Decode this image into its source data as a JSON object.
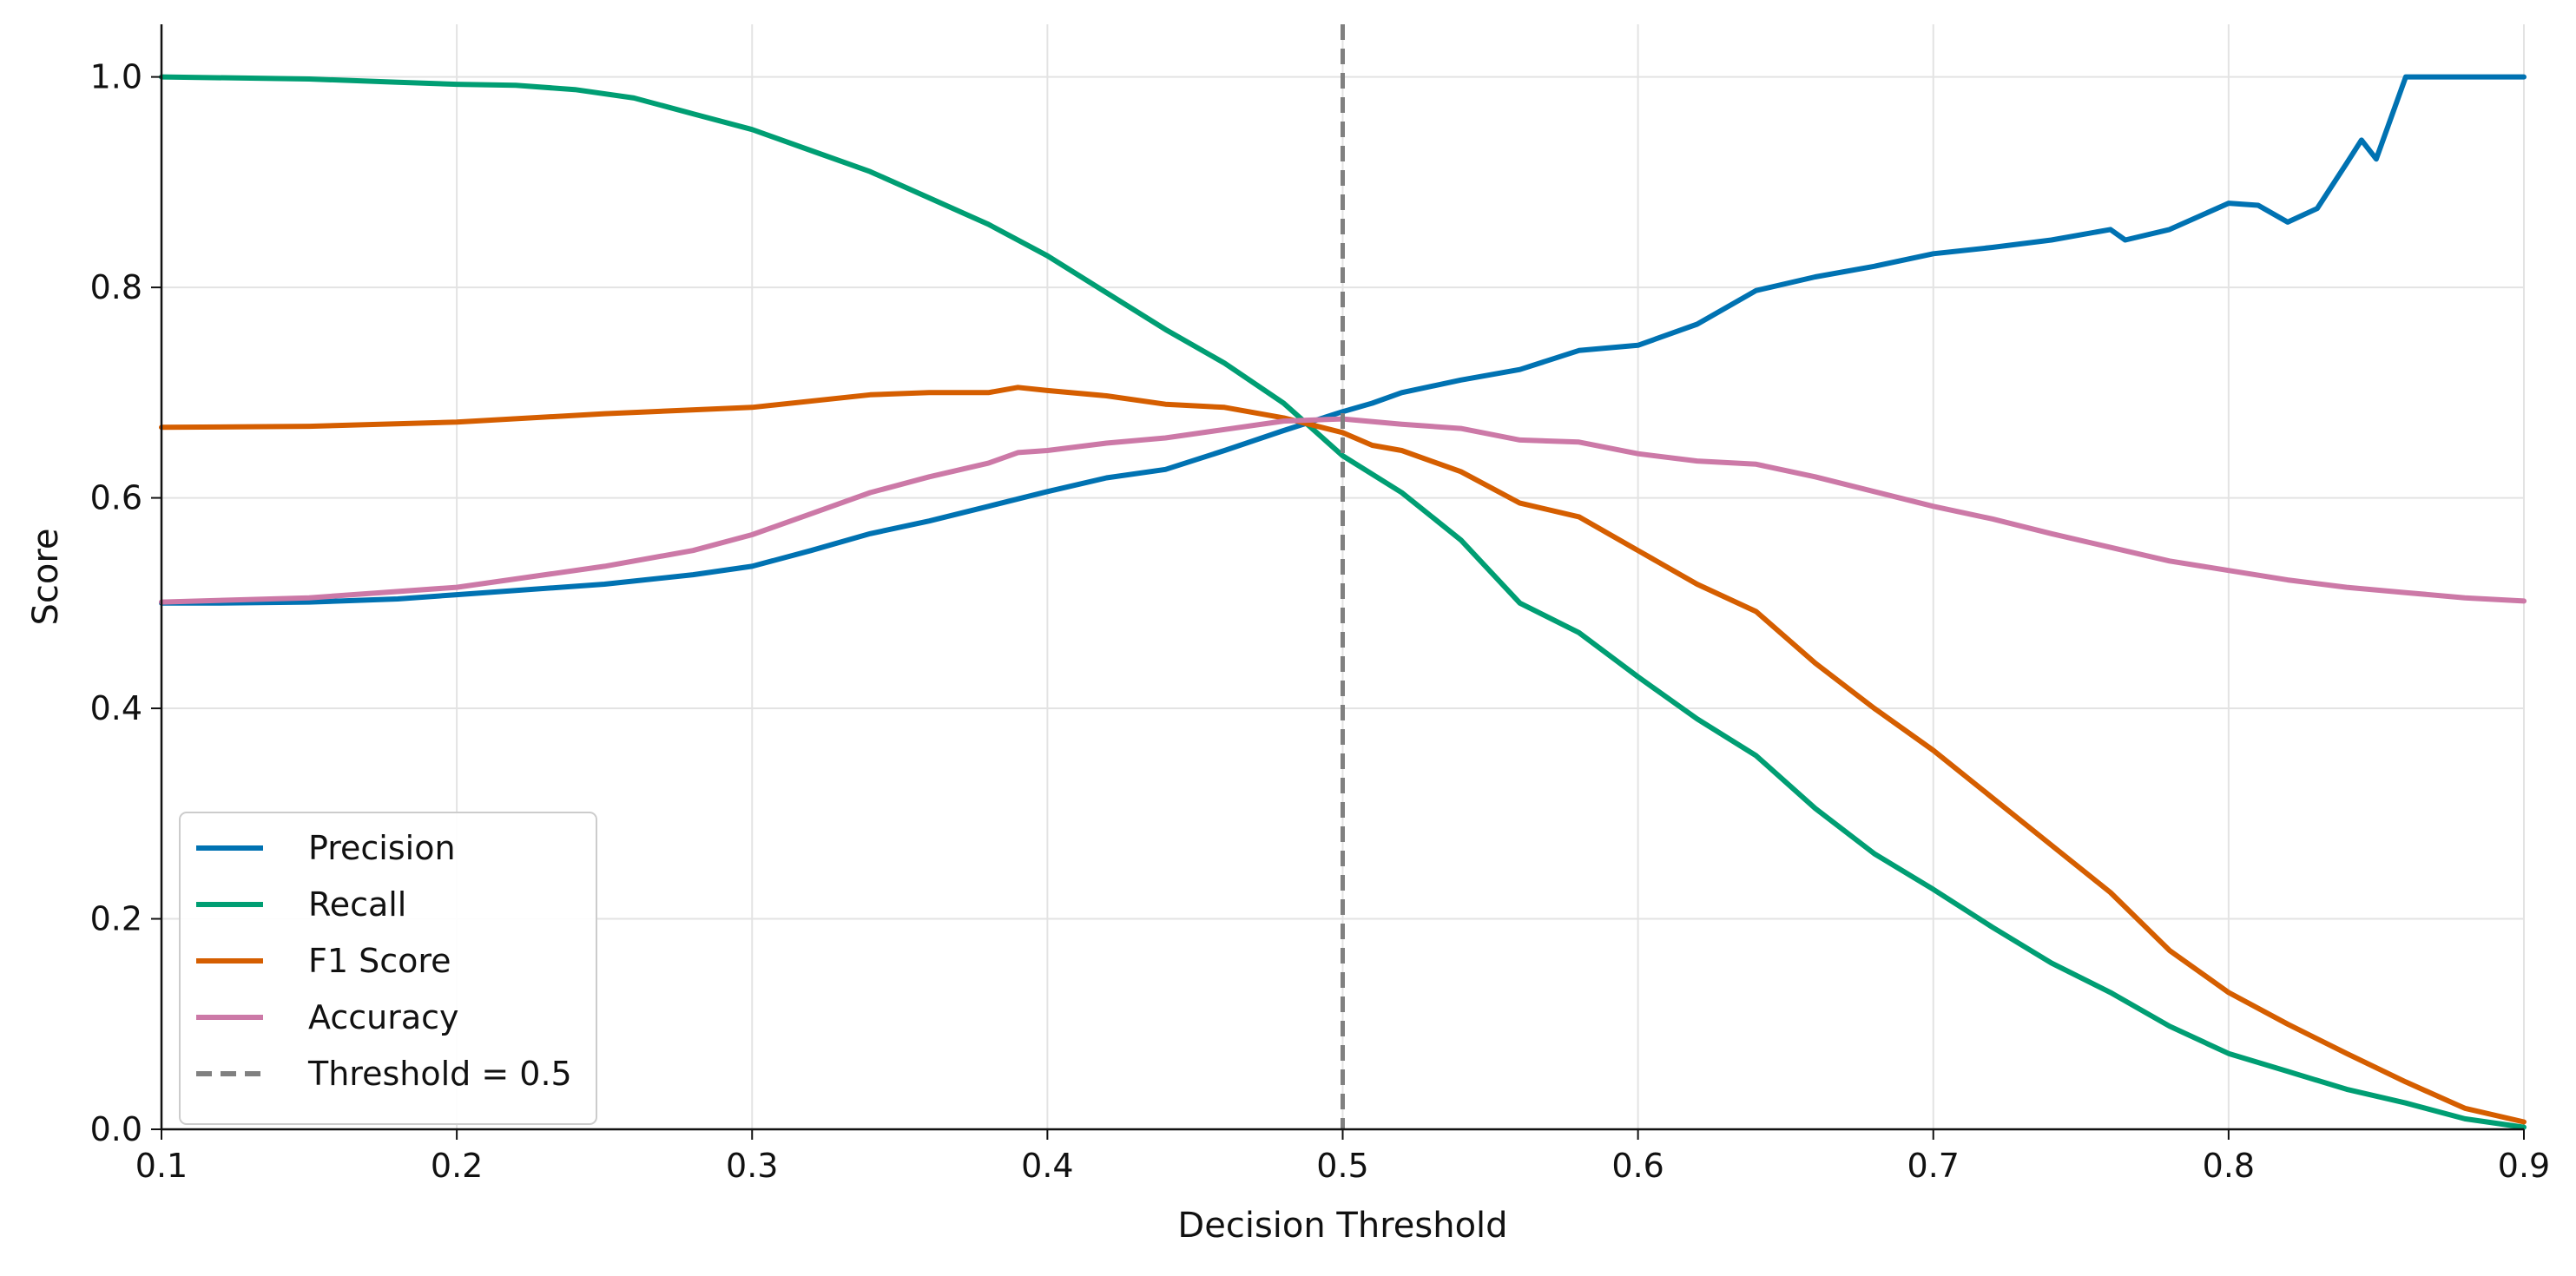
{
  "chart_data": {
    "type": "line",
    "title": "",
    "xlabel": "Decision Threshold",
    "ylabel": "Score",
    "xlim": [
      0.1,
      0.9
    ],
    "ylim": [
      0.0,
      1.05
    ],
    "xticks": [
      "0.1",
      "0.2",
      "0.3",
      "0.4",
      "0.5",
      "0.6",
      "0.7",
      "0.8",
      "0.9"
    ],
    "yticks": [
      "0.0",
      "0.2",
      "0.4",
      "0.6",
      "0.8",
      "1.0"
    ],
    "grid": true,
    "legend_position": "lower-left",
    "series": [
      {
        "name": "Precision",
        "color": "#0072B2",
        "points": [
          [
            0.1,
            0.5
          ],
          [
            0.12,
            0.5
          ],
          [
            0.15,
            0.501
          ],
          [
            0.18,
            0.504
          ],
          [
            0.2,
            0.508
          ],
          [
            0.22,
            0.512
          ],
          [
            0.25,
            0.518
          ],
          [
            0.28,
            0.527
          ],
          [
            0.3,
            0.535
          ],
          [
            0.32,
            0.55
          ],
          [
            0.34,
            0.566
          ],
          [
            0.36,
            0.578
          ],
          [
            0.38,
            0.592
          ],
          [
            0.4,
            0.606
          ],
          [
            0.42,
            0.619
          ],
          [
            0.44,
            0.627
          ],
          [
            0.46,
            0.645
          ],
          [
            0.48,
            0.664
          ],
          [
            0.5,
            0.682
          ],
          [
            0.51,
            0.69
          ],
          [
            0.52,
            0.7
          ],
          [
            0.54,
            0.712
          ],
          [
            0.56,
            0.722
          ],
          [
            0.58,
            0.74
          ],
          [
            0.6,
            0.745
          ],
          [
            0.62,
            0.765
          ],
          [
            0.64,
            0.797
          ],
          [
            0.66,
            0.81
          ],
          [
            0.68,
            0.82
          ],
          [
            0.7,
            0.832
          ],
          [
            0.72,
            0.838
          ],
          [
            0.74,
            0.845
          ],
          [
            0.76,
            0.855
          ],
          [
            0.765,
            0.845
          ],
          [
            0.78,
            0.855
          ],
          [
            0.8,
            0.88
          ],
          [
            0.81,
            0.878
          ],
          [
            0.82,
            0.862
          ],
          [
            0.83,
            0.875
          ],
          [
            0.84,
            0.918
          ],
          [
            0.845,
            0.94
          ],
          [
            0.85,
            0.922
          ],
          [
            0.86,
            1.0
          ],
          [
            0.9,
            1.0
          ]
        ]
      },
      {
        "name": "Recall",
        "color": "#009E73",
        "points": [
          [
            0.1,
            1.0
          ],
          [
            0.15,
            0.998
          ],
          [
            0.18,
            0.995
          ],
          [
            0.2,
            0.993
          ],
          [
            0.22,
            0.992
          ],
          [
            0.24,
            0.988
          ],
          [
            0.26,
            0.98
          ],
          [
            0.28,
            0.965
          ],
          [
            0.3,
            0.95
          ],
          [
            0.32,
            0.93
          ],
          [
            0.34,
            0.91
          ],
          [
            0.36,
            0.885
          ],
          [
            0.38,
            0.86
          ],
          [
            0.4,
            0.83
          ],
          [
            0.42,
            0.795
          ],
          [
            0.44,
            0.76
          ],
          [
            0.46,
            0.728
          ],
          [
            0.48,
            0.69
          ],
          [
            0.5,
            0.64
          ],
          [
            0.52,
            0.605
          ],
          [
            0.54,
            0.56
          ],
          [
            0.56,
            0.5
          ],
          [
            0.58,
            0.472
          ],
          [
            0.6,
            0.43
          ],
          [
            0.62,
            0.39
          ],
          [
            0.64,
            0.355
          ],
          [
            0.66,
            0.305
          ],
          [
            0.68,
            0.262
          ],
          [
            0.7,
            0.228
          ],
          [
            0.72,
            0.192
          ],
          [
            0.74,
            0.158
          ],
          [
            0.76,
            0.13
          ],
          [
            0.78,
            0.098
          ],
          [
            0.8,
            0.072
          ],
          [
            0.82,
            0.055
          ],
          [
            0.84,
            0.038
          ],
          [
            0.86,
            0.025
          ],
          [
            0.88,
            0.01
          ],
          [
            0.9,
            0.002
          ]
        ]
      },
      {
        "name": "F1 Score",
        "color": "#D55E00",
        "points": [
          [
            0.1,
            0.667
          ],
          [
            0.15,
            0.668
          ],
          [
            0.2,
            0.672
          ],
          [
            0.25,
            0.68
          ],
          [
            0.3,
            0.686
          ],
          [
            0.34,
            0.698
          ],
          [
            0.36,
            0.7
          ],
          [
            0.38,
            0.7
          ],
          [
            0.39,
            0.705
          ],
          [
            0.4,
            0.702
          ],
          [
            0.42,
            0.697
          ],
          [
            0.44,
            0.689
          ],
          [
            0.46,
            0.686
          ],
          [
            0.48,
            0.676
          ],
          [
            0.5,
            0.662
          ],
          [
            0.51,
            0.65
          ],
          [
            0.52,
            0.645
          ],
          [
            0.54,
            0.625
          ],
          [
            0.56,
            0.595
          ],
          [
            0.58,
            0.582
          ],
          [
            0.6,
            0.55
          ],
          [
            0.62,
            0.518
          ],
          [
            0.64,
            0.492
          ],
          [
            0.66,
            0.443
          ],
          [
            0.68,
            0.4
          ],
          [
            0.7,
            0.36
          ],
          [
            0.72,
            0.315
          ],
          [
            0.74,
            0.27
          ],
          [
            0.76,
            0.225
          ],
          [
            0.78,
            0.17
          ],
          [
            0.8,
            0.13
          ],
          [
            0.82,
            0.1
          ],
          [
            0.84,
            0.072
          ],
          [
            0.86,
            0.045
          ],
          [
            0.88,
            0.02
          ],
          [
            0.9,
            0.007
          ]
        ]
      },
      {
        "name": "Accuracy",
        "color": "#CC79A7",
        "points": [
          [
            0.1,
            0.501
          ],
          [
            0.15,
            0.505
          ],
          [
            0.2,
            0.515
          ],
          [
            0.25,
            0.535
          ],
          [
            0.28,
            0.55
          ],
          [
            0.3,
            0.565
          ],
          [
            0.32,
            0.585
          ],
          [
            0.34,
            0.605
          ],
          [
            0.36,
            0.62
          ],
          [
            0.38,
            0.633
          ],
          [
            0.39,
            0.643
          ],
          [
            0.4,
            0.645
          ],
          [
            0.42,
            0.652
          ],
          [
            0.44,
            0.657
          ],
          [
            0.46,
            0.665
          ],
          [
            0.48,
            0.673
          ],
          [
            0.5,
            0.675
          ],
          [
            0.52,
            0.67
          ],
          [
            0.54,
            0.666
          ],
          [
            0.56,
            0.655
          ],
          [
            0.58,
            0.653
          ],
          [
            0.6,
            0.642
          ],
          [
            0.62,
            0.635
          ],
          [
            0.64,
            0.632
          ],
          [
            0.66,
            0.62
          ],
          [
            0.68,
            0.606
          ],
          [
            0.7,
            0.592
          ],
          [
            0.72,
            0.58
          ],
          [
            0.74,
            0.566
          ],
          [
            0.76,
            0.553
          ],
          [
            0.78,
            0.54
          ],
          [
            0.8,
            0.531
          ],
          [
            0.82,
            0.522
          ],
          [
            0.84,
            0.515
          ],
          [
            0.86,
            0.51
          ],
          [
            0.88,
            0.505
          ],
          [
            0.9,
            0.502
          ]
        ]
      }
    ],
    "reference_line": {
      "name": "Threshold = 0.5",
      "x": 0.5,
      "color": "#808080",
      "style": "dashed"
    }
  }
}
